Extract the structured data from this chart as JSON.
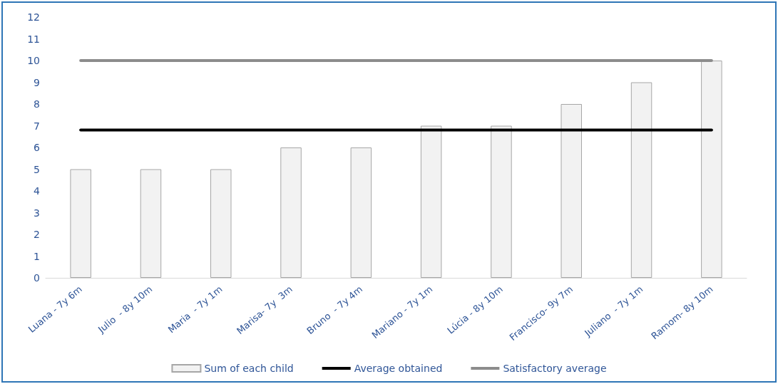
{
  "chart_data": {
    "type": "bar",
    "categories": [
      "Luana - 7y 6m",
      "Julio  - 8y 10m",
      "Maria  - 7y 1m",
      "Marisa- 7y  3m",
      "Bruno  - 7y 4m",
      "Mariano - 7y 1m",
      "Lúcia - 8y 10m",
      "Francisco- 9y 7m",
      "Juliano  - 7y 1m",
      "Ramom- 8y 10m"
    ],
    "series": [
      {
        "name": "Sum of each child",
        "color": "#f2f2f2",
        "values": [
          5,
          5,
          5,
          6,
          6,
          7,
          7,
          8,
          9,
          10
        ]
      },
      {
        "name": "Average obtained",
        "type": "line",
        "color": "#000000",
        "values": [
          6.8,
          6.8,
          6.8,
          6.8,
          6.8,
          6.8,
          6.8,
          6.8,
          6.8,
          6.8
        ]
      },
      {
        "name": "Satisfactory average",
        "type": "line",
        "color": "#8c8c8c",
        "values": [
          10,
          10,
          10,
          10,
          10,
          10,
          10,
          10,
          10,
          10
        ]
      }
    ],
    "ylim": [
      0,
      12
    ],
    "yticks": [
      0,
      1,
      2,
      3,
      4,
      5,
      6,
      7,
      8,
      9,
      10,
      11,
      12
    ],
    "grid": false,
    "legend": "bottom",
    "marker": "none",
    "line_style": "solid"
  }
}
